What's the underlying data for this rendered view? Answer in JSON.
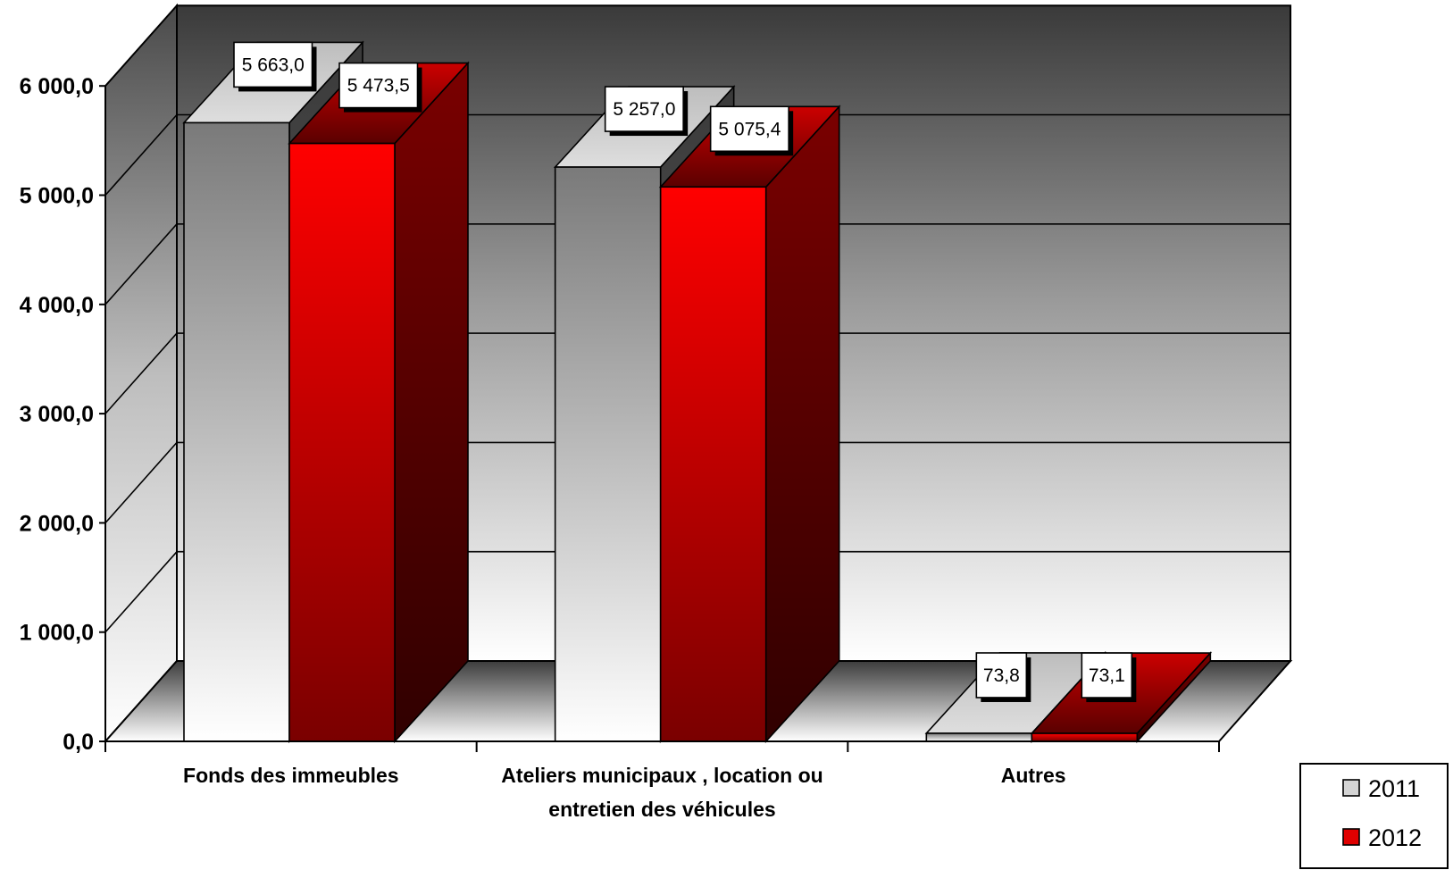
{
  "chart_data": {
    "type": "bar",
    "categories": [
      [
        "Fonds des immeubles"
      ],
      [
        "Ateliers municipaux , location ou",
        "entretien des véhicules"
      ],
      [
        "Autres"
      ]
    ],
    "series": [
      {
        "name": "2011",
        "values": [
          5663.0,
          5257.0,
          73.8
        ],
        "labels": [
          "5 663,0",
          "5 257,0",
          "73,8"
        ],
        "color": "#9a9a9a"
      },
      {
        "name": "2012",
        "values": [
          5473.5,
          5075.4,
          73.1
        ],
        "labels": [
          "5 473,5",
          "5 075,4",
          "73,1"
        ],
        "color": "#e00000"
      }
    ],
    "yticks": [
      "0,0",
      "1 000,0",
      "2 000,0",
      "3 000,0",
      "4 000,0",
      "5 000,0",
      "6 000,0"
    ],
    "ylim": [
      0,
      6000
    ],
    "grid": true,
    "legend_position": "bottom-right",
    "style": "3d-clustered-column"
  }
}
